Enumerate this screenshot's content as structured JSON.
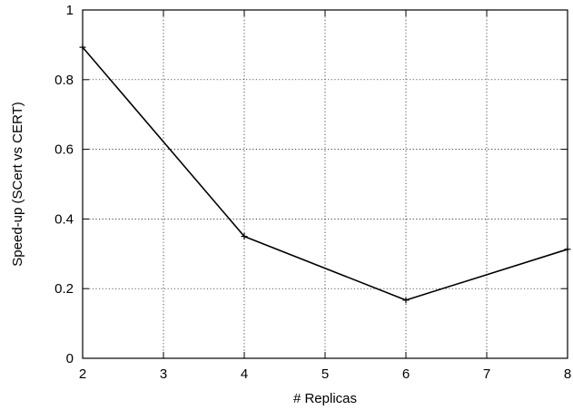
{
  "chart_data": {
    "type": "line",
    "xlabel": "# Replicas",
    "ylabel": "Speed-up (SCert vs CERT)",
    "xlim": [
      2,
      8
    ],
    "ylim": [
      0,
      1
    ],
    "xticks": [
      2,
      3,
      4,
      5,
      6,
      7,
      8
    ],
    "yticks": [
      0,
      0.2,
      0.4,
      0.6,
      0.8,
      1
    ],
    "ytick_labels": [
      "0",
      "0.2",
      "0.4",
      "0.6",
      "0.8",
      "1"
    ],
    "grid": true,
    "legend": "none",
    "series": [
      {
        "x": [
          2,
          4,
          6,
          8
        ],
        "y": [
          0.893,
          0.35,
          0.167,
          0.313
        ],
        "color": "#000000",
        "marker": "plus"
      }
    ]
  }
}
